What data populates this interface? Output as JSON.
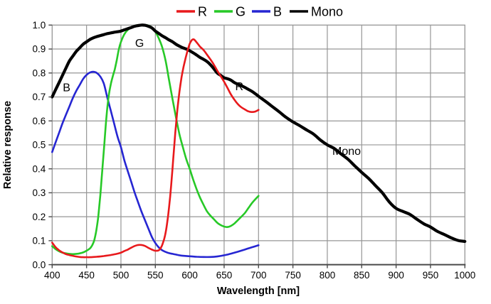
{
  "chart_data": {
    "type": "line",
    "title": "",
    "xlabel": "Wavelength [nm]",
    "ylabel": "Relative response",
    "xlim": [
      400,
      1000
    ],
    "ylim": [
      0.0,
      1.0
    ],
    "x_ticks": [
      400,
      450,
      500,
      550,
      600,
      650,
      700,
      750,
      800,
      850,
      900,
      950,
      1000
    ],
    "y_ticks": [
      "0.0",
      "0.1",
      "0.2",
      "0.3",
      "0.4",
      "0.5",
      "0.6",
      "0.7",
      "0.8",
      "0.9",
      "1.0"
    ],
    "grid": "on",
    "legend_position": "top-center",
    "legend": [
      {
        "label": "R",
        "color": "#e8191c"
      },
      {
        "label": "G",
        "color": "#27c927"
      },
      {
        "label": "B",
        "color": "#2626d2"
      },
      {
        "label": "Mono",
        "color": "#000000"
      }
    ],
    "annotations": [
      {
        "text": "B",
        "x": 421,
        "y": 0.74
      },
      {
        "text": "G",
        "x": 527,
        "y": 0.925
      },
      {
        "text": "R",
        "x": 672,
        "y": 0.745
      },
      {
        "text": "Mono",
        "x": 828,
        "y": 0.475
      }
    ],
    "series": [
      {
        "name": "B",
        "color": "#2626d2",
        "width": 2.6,
        "points": [
          [
            400,
            0.47
          ],
          [
            405,
            0.51
          ],
          [
            410,
            0.55
          ],
          [
            415,
            0.59
          ],
          [
            420,
            0.625
          ],
          [
            425,
            0.66
          ],
          [
            430,
            0.695
          ],
          [
            435,
            0.725
          ],
          [
            440,
            0.75
          ],
          [
            445,
            0.775
          ],
          [
            450,
            0.792
          ],
          [
            455,
            0.802
          ],
          [
            460,
            0.805
          ],
          [
            465,
            0.8
          ],
          [
            470,
            0.785
          ],
          [
            475,
            0.757
          ],
          [
            480,
            0.7
          ],
          [
            485,
            0.645
          ],
          [
            490,
            0.59
          ],
          [
            495,
            0.535
          ],
          [
            500,
            0.49
          ],
          [
            505,
            0.435
          ],
          [
            510,
            0.39
          ],
          [
            515,
            0.345
          ],
          [
            520,
            0.3
          ],
          [
            525,
            0.26
          ],
          [
            530,
            0.22
          ],
          [
            535,
            0.185
          ],
          [
            540,
            0.15
          ],
          [
            545,
            0.115
          ],
          [
            550,
            0.09
          ],
          [
            555,
            0.072
          ],
          [
            560,
            0.06
          ],
          [
            565,
            0.053
          ],
          [
            570,
            0.048
          ],
          [
            575,
            0.045
          ],
          [
            580,
            0.042
          ],
          [
            585,
            0.039
          ],
          [
            590,
            0.037
          ],
          [
            600,
            0.035
          ],
          [
            610,
            0.033
          ],
          [
            620,
            0.032
          ],
          [
            630,
            0.032
          ],
          [
            640,
            0.034
          ],
          [
            650,
            0.039
          ],
          [
            660,
            0.046
          ],
          [
            670,
            0.054
          ],
          [
            680,
            0.063
          ],
          [
            690,
            0.072
          ],
          [
            700,
            0.081
          ]
        ]
      },
      {
        "name": "G",
        "color": "#27c927",
        "width": 2.6,
        "points": [
          [
            400,
            0.077
          ],
          [
            405,
            0.065
          ],
          [
            410,
            0.056
          ],
          [
            415,
            0.05
          ],
          [
            420,
            0.047
          ],
          [
            425,
            0.045
          ],
          [
            430,
            0.044
          ],
          [
            435,
            0.045
          ],
          [
            440,
            0.047
          ],
          [
            445,
            0.051
          ],
          [
            450,
            0.058
          ],
          [
            455,
            0.068
          ],
          [
            458,
            0.08
          ],
          [
            461,
            0.1
          ],
          [
            464,
            0.14
          ],
          [
            467,
            0.2
          ],
          [
            470,
            0.29
          ],
          [
            473,
            0.4
          ],
          [
            476,
            0.51
          ],
          [
            479,
            0.62
          ],
          [
            482,
            0.7
          ],
          [
            485,
            0.75
          ],
          [
            488,
            0.785
          ],
          [
            491,
            0.815
          ],
          [
            494,
            0.855
          ],
          [
            497,
            0.9
          ],
          [
            500,
            0.93
          ],
          [
            505,
            0.962
          ],
          [
            510,
            0.98
          ],
          [
            515,
            0.99
          ],
          [
            520,
            0.997
          ],
          [
            525,
            1.0
          ],
          [
            530,
            1.0
          ],
          [
            535,
            1.0
          ],
          [
            540,
            0.998
          ],
          [
            545,
            0.99
          ],
          [
            550,
            0.972
          ],
          [
            555,
            0.945
          ],
          [
            560,
            0.907
          ],
          [
            565,
            0.85
          ],
          [
            570,
            0.77
          ],
          [
            575,
            0.69
          ],
          [
            580,
            0.615
          ],
          [
            585,
            0.545
          ],
          [
            590,
            0.49
          ],
          [
            595,
            0.44
          ],
          [
            600,
            0.4
          ],
          [
            605,
            0.355
          ],
          [
            610,
            0.315
          ],
          [
            615,
            0.28
          ],
          [
            620,
            0.25
          ],
          [
            625,
            0.223
          ],
          [
            630,
            0.205
          ],
          [
            635,
            0.19
          ],
          [
            640,
            0.175
          ],
          [
            645,
            0.165
          ],
          [
            650,
            0.159
          ],
          [
            655,
            0.157
          ],
          [
            660,
            0.162
          ],
          [
            665,
            0.172
          ],
          [
            670,
            0.186
          ],
          [
            675,
            0.2
          ],
          [
            680,
            0.215
          ],
          [
            685,
            0.235
          ],
          [
            690,
            0.255
          ],
          [
            695,
            0.272
          ],
          [
            700,
            0.287
          ]
        ]
      },
      {
        "name": "Mono",
        "color": "#000000",
        "width": 4.2,
        "points": [
          [
            400,
            0.7
          ],
          [
            405,
            0.73
          ],
          [
            410,
            0.76
          ],
          [
            415,
            0.79
          ],
          [
            420,
            0.82
          ],
          [
            425,
            0.85
          ],
          [
            430,
            0.87
          ],
          [
            435,
            0.89
          ],
          [
            440,
            0.905
          ],
          [
            445,
            0.92
          ],
          [
            450,
            0.93
          ],
          [
            455,
            0.94
          ],
          [
            460,
            0.947
          ],
          [
            465,
            0.952
          ],
          [
            470,
            0.956
          ],
          [
            475,
            0.96
          ],
          [
            480,
            0.964
          ],
          [
            485,
            0.967
          ],
          [
            490,
            0.97
          ],
          [
            495,
            0.972
          ],
          [
            500,
            0.975
          ],
          [
            505,
            0.98
          ],
          [
            510,
            0.985
          ],
          [
            515,
            0.99
          ],
          [
            520,
            0.995
          ],
          [
            525,
            0.998
          ],
          [
            530,
            1.0
          ],
          [
            535,
            0.999
          ],
          [
            540,
            0.995
          ],
          [
            545,
            0.988
          ],
          [
            550,
            0.975
          ],
          [
            555,
            0.965
          ],
          [
            560,
            0.955
          ],
          [
            565,
            0.947
          ],
          [
            570,
            0.938
          ],
          [
            575,
            0.93
          ],
          [
            580,
            0.92
          ],
          [
            585,
            0.912
          ],
          [
            590,
            0.905
          ],
          [
            595,
            0.9
          ],
          [
            600,
            0.893
          ],
          [
            605,
            0.884
          ],
          [
            610,
            0.875
          ],
          [
            615,
            0.865
          ],
          [
            620,
            0.857
          ],
          [
            625,
            0.848
          ],
          [
            630,
            0.835
          ],
          [
            635,
            0.818
          ],
          [
            640,
            0.8
          ],
          [
            645,
            0.79
          ],
          [
            650,
            0.78
          ],
          [
            655,
            0.776
          ],
          [
            660,
            0.77
          ],
          [
            665,
            0.76
          ],
          [
            670,
            0.753
          ],
          [
            675,
            0.747
          ],
          [
            680,
            0.74
          ],
          [
            685,
            0.732
          ],
          [
            690,
            0.724
          ],
          [
            695,
            0.714
          ],
          [
            700,
            0.703
          ],
          [
            710,
            0.682
          ],
          [
            720,
            0.66
          ],
          [
            730,
            0.638
          ],
          [
            740,
            0.615
          ],
          [
            750,
            0.596
          ],
          [
            760,
            0.58
          ],
          [
            770,
            0.562
          ],
          [
            780,
            0.545
          ],
          [
            790,
            0.52
          ],
          [
            800,
            0.5
          ],
          [
            810,
            0.485
          ],
          [
            820,
            0.462
          ],
          [
            830,
            0.44
          ],
          [
            840,
            0.412
          ],
          [
            850,
            0.385
          ],
          [
            860,
            0.36
          ],
          [
            870,
            0.33
          ],
          [
            880,
            0.3
          ],
          [
            890,
            0.262
          ],
          [
            900,
            0.235
          ],
          [
            910,
            0.222
          ],
          [
            920,
            0.21
          ],
          [
            930,
            0.19
          ],
          [
            940,
            0.171
          ],
          [
            950,
            0.157
          ],
          [
            960,
            0.139
          ],
          [
            970,
            0.126
          ],
          [
            980,
            0.112
          ],
          [
            990,
            0.101
          ],
          [
            1000,
            0.097
          ]
        ]
      },
      {
        "name": "R",
        "color": "#e8191c",
        "width": 2.6,
        "points": [
          [
            400,
            0.092
          ],
          [
            405,
            0.073
          ],
          [
            410,
            0.06
          ],
          [
            415,
            0.051
          ],
          [
            420,
            0.044
          ],
          [
            425,
            0.04
          ],
          [
            430,
            0.037
          ],
          [
            435,
            0.034
          ],
          [
            440,
            0.032
          ],
          [
            445,
            0.031
          ],
          [
            450,
            0.031
          ],
          [
            455,
            0.031
          ],
          [
            460,
            0.032
          ],
          [
            465,
            0.033
          ],
          [
            470,
            0.034
          ],
          [
            475,
            0.036
          ],
          [
            480,
            0.038
          ],
          [
            485,
            0.04
          ],
          [
            490,
            0.043
          ],
          [
            495,
            0.046
          ],
          [
            500,
            0.05
          ],
          [
            505,
            0.057
          ],
          [
            510,
            0.063
          ],
          [
            515,
            0.071
          ],
          [
            520,
            0.078
          ],
          [
            525,
            0.082
          ],
          [
            530,
            0.082
          ],
          [
            535,
            0.078
          ],
          [
            540,
            0.07
          ],
          [
            545,
            0.063
          ],
          [
            550,
            0.058
          ],
          [
            555,
            0.06
          ],
          [
            558,
            0.07
          ],
          [
            561,
            0.09
          ],
          [
            564,
            0.12
          ],
          [
            567,
            0.17
          ],
          [
            570,
            0.24
          ],
          [
            573,
            0.33
          ],
          [
            576,
            0.44
          ],
          [
            579,
            0.55
          ],
          [
            582,
            0.645
          ],
          [
            585,
            0.72
          ],
          [
            588,
            0.78
          ],
          [
            591,
            0.825
          ],
          [
            594,
            0.862
          ],
          [
            597,
            0.895
          ],
          [
            600,
            0.922
          ],
          [
            603,
            0.937
          ],
          [
            606,
            0.94
          ],
          [
            610,
            0.928
          ],
          [
            615,
            0.91
          ],
          [
            620,
            0.896
          ],
          [
            625,
            0.877
          ],
          [
            630,
            0.857
          ],
          [
            635,
            0.835
          ],
          [
            640,
            0.81
          ],
          [
            645,
            0.787
          ],
          [
            650,
            0.763
          ],
          [
            655,
            0.737
          ],
          [
            660,
            0.71
          ],
          [
            665,
            0.688
          ],
          [
            670,
            0.67
          ],
          [
            675,
            0.657
          ],
          [
            680,
            0.648
          ],
          [
            685,
            0.64
          ],
          [
            690,
            0.637
          ],
          [
            695,
            0.639
          ],
          [
            700,
            0.646
          ]
        ]
      }
    ]
  },
  "colors": {
    "background": "#ffffff",
    "gridline": "#969696",
    "axis": "#4a4a4a",
    "text": "#000000"
  }
}
